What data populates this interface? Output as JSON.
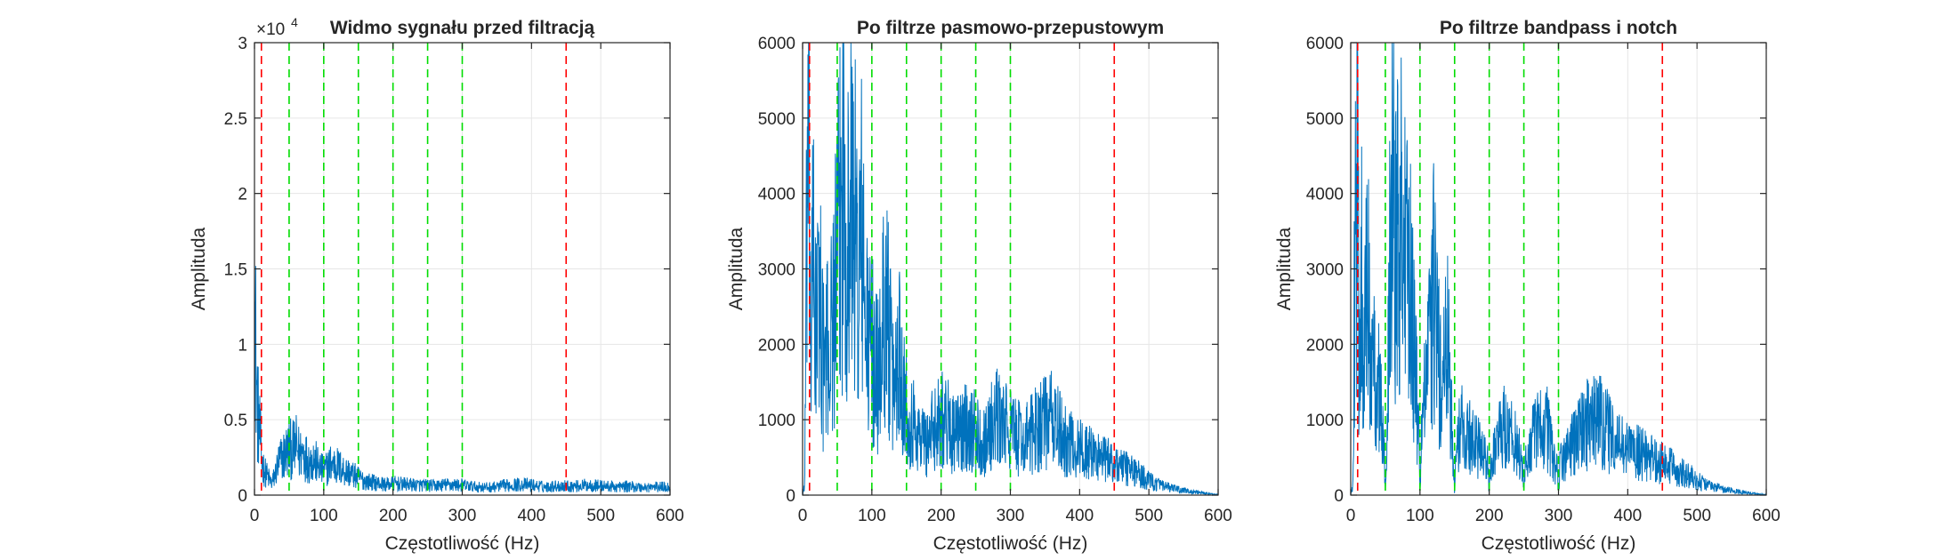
{
  "colors": {
    "signal": "#0072BD",
    "cutoff_lines": "#FF0000",
    "harmonic_lines": "#00DD00",
    "grid": "#E6E6E6",
    "axes": "#262626"
  },
  "chart_data": [
    {
      "type": "line",
      "title": "Widmo sygnału przed filtracją",
      "xlabel": "Częstotliwość (Hz)",
      "ylabel": "Amplituda",
      "exponent_label": "×10",
      "exponent_power": "4",
      "xlim": [
        0,
        600
      ],
      "ylim": [
        0,
        30000
      ],
      "xticks": [
        0,
        100,
        200,
        300,
        400,
        500,
        600
      ],
      "xtick_labels": [
        "0",
        "100",
        "200",
        "300",
        "400",
        "500",
        "600"
      ],
      "yticks": [
        0,
        5000,
        10000,
        15000,
        20000,
        25000,
        30000
      ],
      "ytick_labels": [
        "0",
        "0.5",
        "1",
        "1.5",
        "2",
        "2.5",
        "3"
      ],
      "grid": true,
      "vlines_red": [
        10,
        450
      ],
      "vlines_green": [
        50,
        100,
        150,
        200,
        250,
        300
      ],
      "series": [
        {
          "x": [
            0,
            1,
            3,
            5,
            8,
            10,
            12,
            15,
            20,
            25,
            30,
            35,
            40,
            45,
            50,
            55,
            60,
            65,
            70,
            75,
            80,
            85,
            90,
            95,
            100,
            110,
            120,
            130,
            140,
            150,
            160,
            170,
            180,
            190,
            200,
            220,
            240,
            260,
            280,
            300,
            320,
            340,
            360,
            380,
            400,
            420,
            440,
            460,
            480,
            500,
            520,
            540,
            560,
            580,
            600
          ],
          "y": [
            21000,
            15000,
            9000,
            7000,
            5000,
            3500,
            2500,
            2000,
            1500,
            1000,
            1800,
            2800,
            3200,
            3600,
            4000,
            3800,
            4200,
            3500,
            3800,
            3200,
            2900,
            3100,
            2700,
            2300,
            2000,
            2700,
            2500,
            2100,
            1800,
            1500,
            1200,
            1100,
            1000,
            900,
            1000,
            900,
            850,
            800,
            900,
            850,
            700,
            650,
            800,
            900,
            850,
            700,
            800,
            750,
            850,
            800,
            700,
            750,
            650,
            700,
            700
          ]
        }
      ]
    },
    {
      "type": "line",
      "title": "Po filtrze pasmowo-przepustowym",
      "xlabel": "Częstotliwość (Hz)",
      "ylabel": "Amplituda",
      "xlim": [
        0,
        600
      ],
      "ylim": [
        0,
        6000
      ],
      "xticks": [
        0,
        100,
        200,
        300,
        400,
        500,
        600
      ],
      "xtick_labels": [
        "0",
        "100",
        "200",
        "300",
        "400",
        "500",
        "600"
      ],
      "yticks": [
        0,
        1000,
        2000,
        3000,
        4000,
        5000,
        6000
      ],
      "ytick_labels": [
        "0",
        "1000",
        "2000",
        "3000",
        "4000",
        "5000",
        "6000"
      ],
      "grid": true,
      "vlines_red": [
        10,
        450
      ],
      "vlines_green": [
        50,
        100,
        150,
        200,
        250,
        300
      ],
      "series": [
        {
          "x": [
            0,
            3,
            5,
            7,
            10,
            12,
            15,
            20,
            25,
            30,
            40,
            50,
            55,
            60,
            65,
            70,
            75,
            80,
            85,
            90,
            100,
            110,
            120,
            130,
            140,
            150,
            160,
            170,
            180,
            200,
            220,
            240,
            260,
            280,
            300,
            320,
            340,
            360,
            380,
            400,
            420,
            440,
            460,
            480,
            500,
            520,
            540,
            560,
            580,
            600
          ],
          "y": [
            0,
            200,
            3000,
            5800,
            4500,
            2500,
            4000,
            2800,
            3500,
            2200,
            2600,
            4000,
            4800,
            5800,
            4200,
            5000,
            4800,
            3500,
            4500,
            3000,
            2500,
            2000,
            3500,
            1800,
            2500,
            1500,
            1200,
            1000,
            900,
            1400,
            1000,
            1200,
            900,
            1300,
            1100,
            900,
            1200,
            1300,
            900,
            800,
            700,
            600,
            500,
            400,
            250,
            150,
            100,
            60,
            30,
            10
          ]
        }
      ]
    },
    {
      "type": "line",
      "title": "Po filtrze bandpass i notch",
      "xlabel": "Częstotliwość (Hz)",
      "ylabel": "Amplituda",
      "xlim": [
        0,
        600
      ],
      "ylim": [
        0,
        6000
      ],
      "xticks": [
        0,
        100,
        200,
        300,
        400,
        500,
        600
      ],
      "xtick_labels": [
        "0",
        "100",
        "200",
        "300",
        "400",
        "500",
        "600"
      ],
      "yticks": [
        0,
        1000,
        2000,
        3000,
        4000,
        5000,
        6000
      ],
      "ytick_labels": [
        "0",
        "1000",
        "2000",
        "3000",
        "4000",
        "5000",
        "6000"
      ],
      "grid": true,
      "vlines_red": [
        10,
        450
      ],
      "vlines_green": [
        50,
        100,
        150,
        200,
        250,
        300
      ],
      "series": [
        {
          "x": [
            0,
            3,
            5,
            7,
            10,
            12,
            15,
            20,
            25,
            30,
            40,
            48,
            50,
            52,
            55,
            60,
            65,
            70,
            75,
            80,
            85,
            90,
            98,
            100,
            102,
            110,
            120,
            130,
            140,
            148,
            150,
            152,
            160,
            170,
            180,
            198,
            200,
            202,
            220,
            240,
            248,
            250,
            252,
            260,
            280,
            298,
            300,
            302,
            320,
            340,
            360,
            380,
            400,
            420,
            440,
            460,
            480,
            500,
            520,
            540,
            560,
            580,
            600
          ],
          "y": [
            0,
            200,
            3000,
            5200,
            4800,
            2500,
            4000,
            2800,
            3500,
            2200,
            2000,
            800,
            50,
            900,
            4000,
            5800,
            4200,
            5100,
            4800,
            3500,
            4200,
            3000,
            1000,
            50,
            1100,
            2000,
            3500,
            1800,
            2500,
            800,
            50,
            700,
            1200,
            1000,
            900,
            500,
            50,
            600,
            1200,
            900,
            400,
            50,
            500,
            900,
            1300,
            400,
            50,
            500,
            900,
            1200,
            1300,
            900,
            800,
            700,
            600,
            500,
            400,
            250,
            150,
            100,
            60,
            30,
            10
          ]
        }
      ]
    }
  ]
}
